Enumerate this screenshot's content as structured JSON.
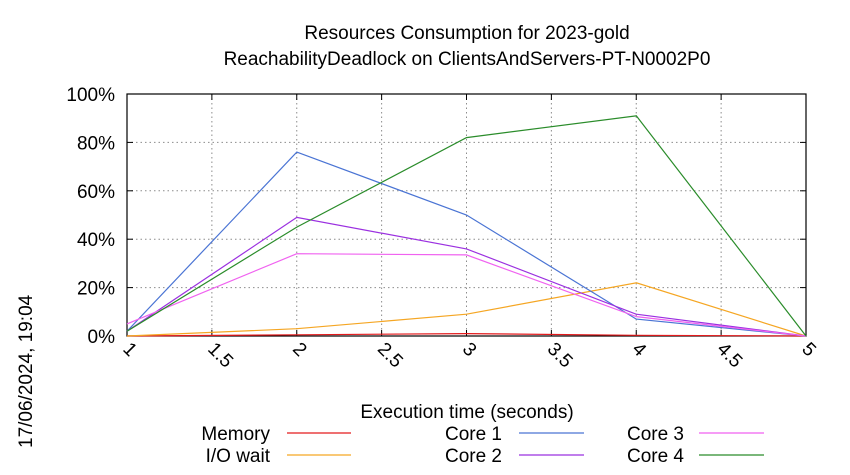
{
  "chart_data": {
    "type": "line",
    "title": [
      "Resources Consumption for 2023-gold",
      "ReachabilityDeadlock on ClientsAndServers-PT-N0002P0"
    ],
    "xlabel": "Execution time (seconds)",
    "ylabel": "",
    "xlim": [
      1,
      5
    ],
    "ylim": [
      0,
      100
    ],
    "x_ticks": [
      "1",
      "1.5",
      "2",
      "2.5",
      "3",
      "3.5",
      "4",
      "4.5",
      "5"
    ],
    "y_ticks": [
      "0%",
      "20%",
      "40%",
      "60%",
      "80%",
      "100%"
    ],
    "grid": true,
    "legend_position": "bottom",
    "series": [
      {
        "name": "Memory",
        "color": "#e41a1c",
        "x": [
          1,
          2,
          3,
          4,
          5
        ],
        "y": [
          0,
          0.5,
          1,
          0.3,
          0
        ]
      },
      {
        "name": "I/O wait",
        "color": "#f5a623",
        "x": [
          1,
          2,
          3,
          4,
          5
        ],
        "y": [
          0,
          3,
          9,
          22,
          0
        ]
      },
      {
        "name": "Core 1",
        "color": "#4a74d4",
        "x": [
          1,
          2,
          3,
          4,
          5
        ],
        "y": [
          2,
          76,
          50,
          7,
          0
        ]
      },
      {
        "name": "Core 2",
        "color": "#9b30e0",
        "x": [
          1,
          2,
          3,
          4,
          5
        ],
        "y": [
          2,
          49,
          36,
          9,
          0
        ]
      },
      {
        "name": "Core 3",
        "color": "#f062f0",
        "x": [
          1,
          2,
          3,
          4,
          5
        ],
        "y": [
          5,
          34,
          33.5,
          8,
          0
        ]
      },
      {
        "name": "Core 4",
        "color": "#2a8c2a",
        "x": [
          1,
          2,
          3,
          4,
          5
        ],
        "y": [
          2,
          45,
          82,
          91,
          0
        ]
      }
    ]
  },
  "timestamp": "17/06/2024, 19:04"
}
